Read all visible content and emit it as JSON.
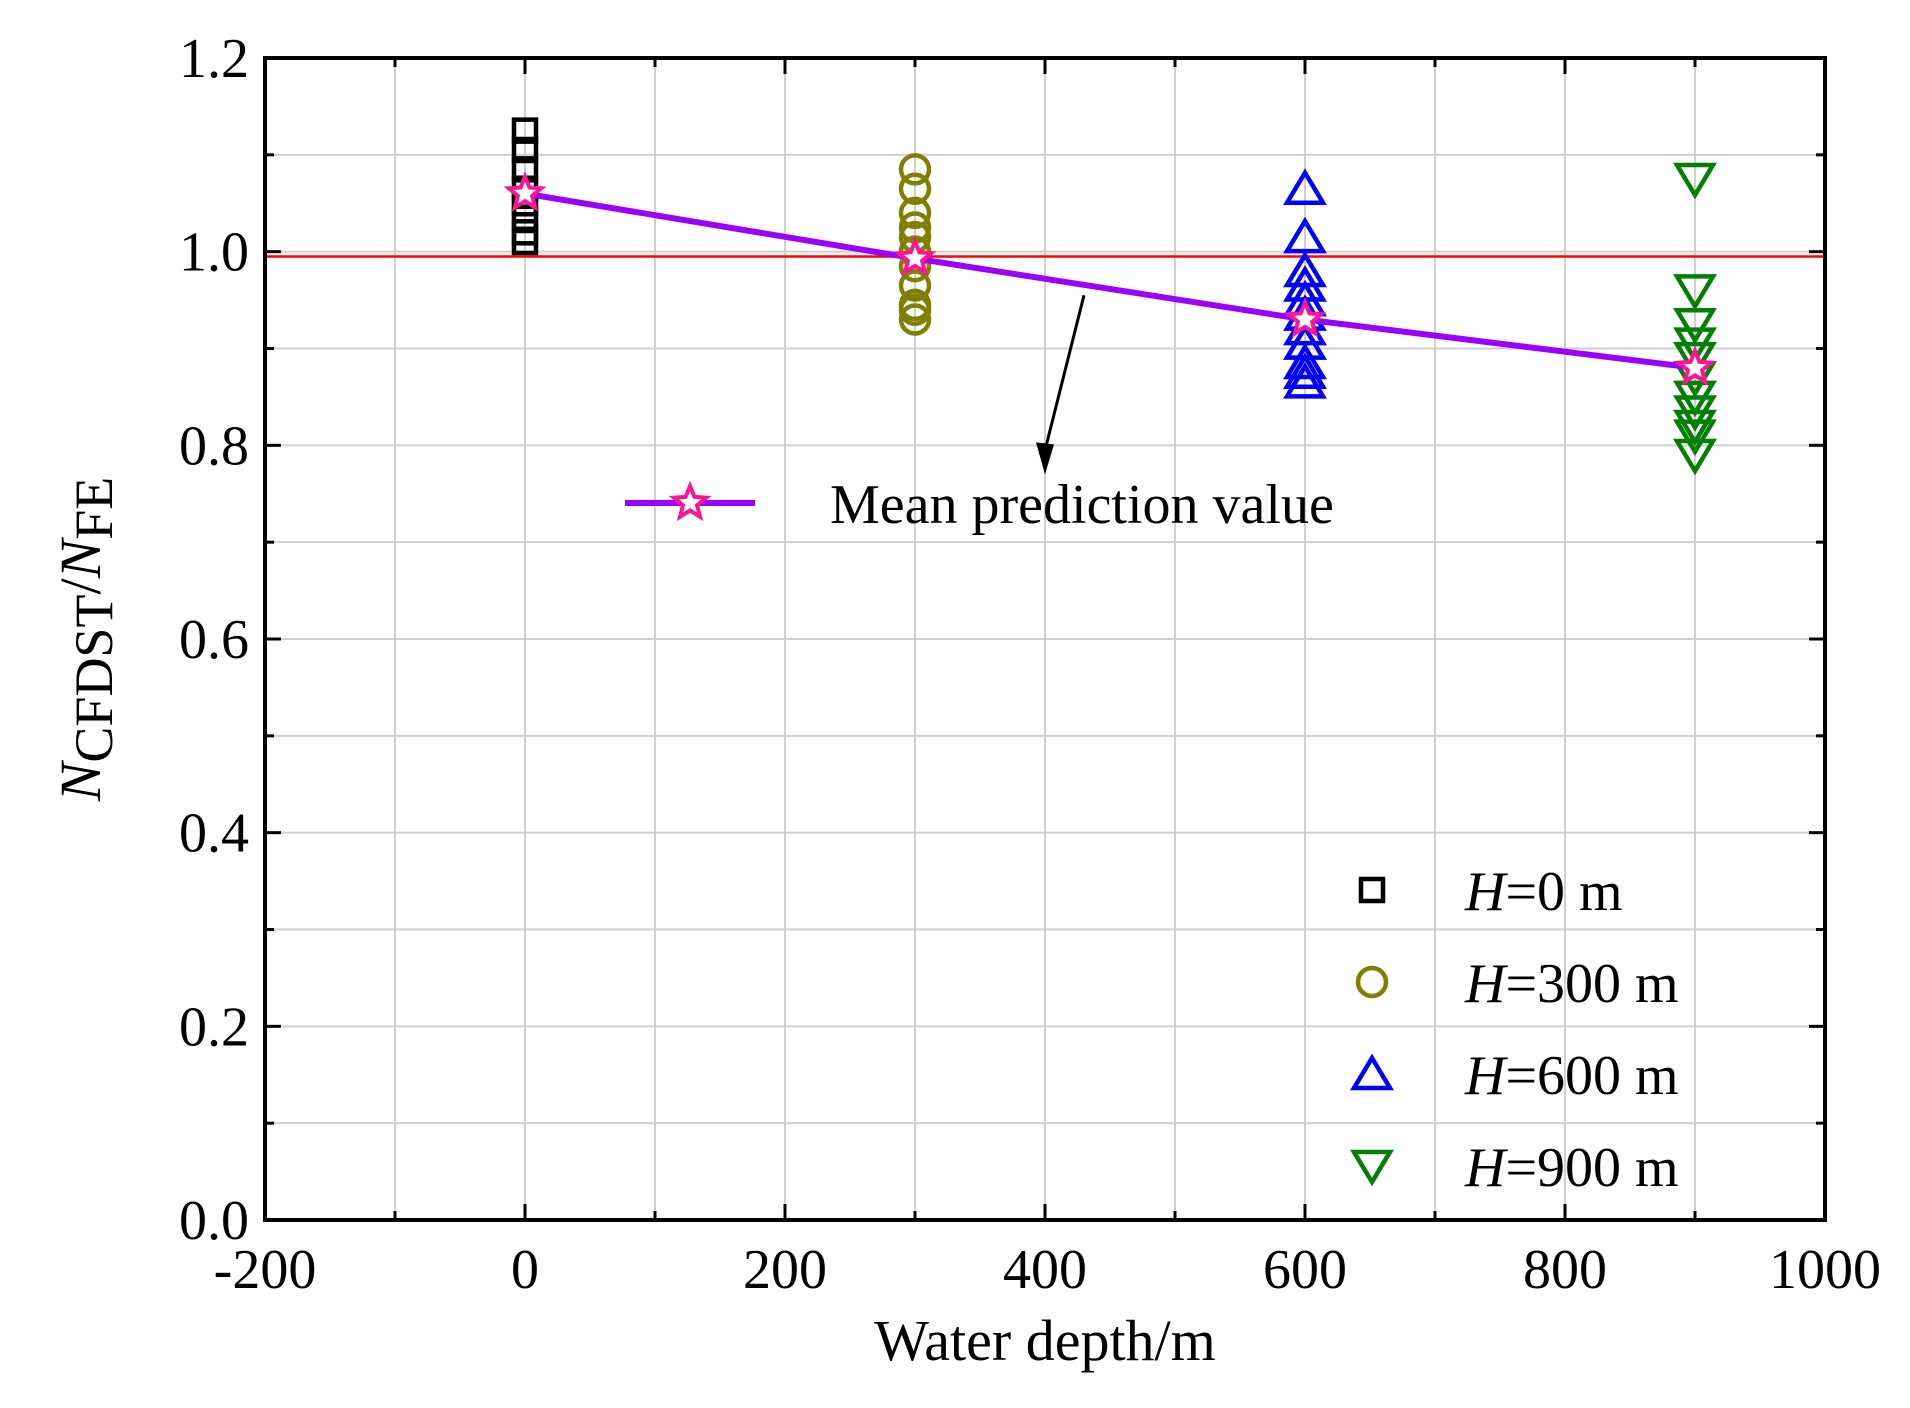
{
  "chart_data": {
    "type": "scatter",
    "xlabel": "Water depth/m",
    "ylabel": {
      "parts": [
        {
          "text": "N",
          "italic": true,
          "sub": false
        },
        {
          "text": "CFDST",
          "italic": false,
          "sub": true
        },
        {
          "text": "/",
          "italic": false,
          "sub": false
        },
        {
          "text": "N",
          "italic": true,
          "sub": false
        },
        {
          "text": "FE",
          "italic": false,
          "sub": true
        }
      ]
    },
    "xlim": [
      -200,
      1000
    ],
    "ylim": [
      0.0,
      1.2
    ],
    "xticks": [
      "-200",
      "0",
      "200",
      "400",
      "600",
      "800",
      "1000"
    ],
    "yticks": [
      "0.0",
      "0.2",
      "0.4",
      "0.6",
      "0.8",
      "1.0",
      "1.2"
    ],
    "grid": true,
    "reference_line": {
      "y": 0.995,
      "color": "#ff0000"
    },
    "series": [
      {
        "name": "H=0 m",
        "legend_italic": "H",
        "legend_rest": "=0 m",
        "marker": "square",
        "color": "#000000",
        "x": [
          0,
          0,
          0,
          0,
          0,
          0,
          0,
          0
        ],
        "y": [
          1.125,
          1.105,
          1.085,
          1.065,
          1.05,
          1.035,
          1.02,
          1.01
        ]
      },
      {
        "name": "H=300 m",
        "legend_italic": "H",
        "legend_rest": "=300 m",
        "marker": "circle",
        "color": "#808000",
        "x": [
          300,
          300,
          300,
          300,
          300,
          300,
          300,
          300,
          300,
          300,
          300
        ],
        "y": [
          1.085,
          1.065,
          1.04,
          1.025,
          1.015,
          1.0,
          0.985,
          0.965,
          0.945,
          0.94,
          0.93
        ]
      },
      {
        "name": "H=600 m",
        "legend_italic": "H",
        "legend_rest": "=600 m",
        "marker": "triangle-up",
        "color": "#0000ff",
        "x": [
          600,
          600,
          600,
          600,
          600,
          600,
          600,
          600,
          600,
          600,
          600
        ],
        "y": [
          1.065,
          1.015,
          0.98,
          0.965,
          0.95,
          0.935,
          0.92,
          0.905,
          0.885,
          0.875,
          0.865
        ]
      },
      {
        "name": "H=900 m",
        "legend_italic": "H",
        "legend_rest": "=900 m",
        "marker": "triangle-down",
        "color": "#008000",
        "x": [
          900,
          900,
          900,
          900,
          900,
          900,
          900,
          900,
          900,
          900,
          900
        ],
        "y": [
          1.075,
          0.96,
          0.925,
          0.905,
          0.89,
          0.87,
          0.85,
          0.835,
          0.82,
          0.81,
          0.79
        ]
      }
    ],
    "mean_series": {
      "name": "Mean prediction value",
      "color": "#9900ff",
      "marker_color": "#ff1493",
      "x": [
        0,
        300,
        600,
        900
      ],
      "y": [
        1.06,
        0.993,
        0.93,
        0.88
      ]
    },
    "annotation": {
      "text": "Mean prediction value",
      "arrow_to": [
        400,
        0.77
      ],
      "arrow_from": [
        430,
        0.955
      ]
    },
    "legend_position": "lower-right"
  }
}
